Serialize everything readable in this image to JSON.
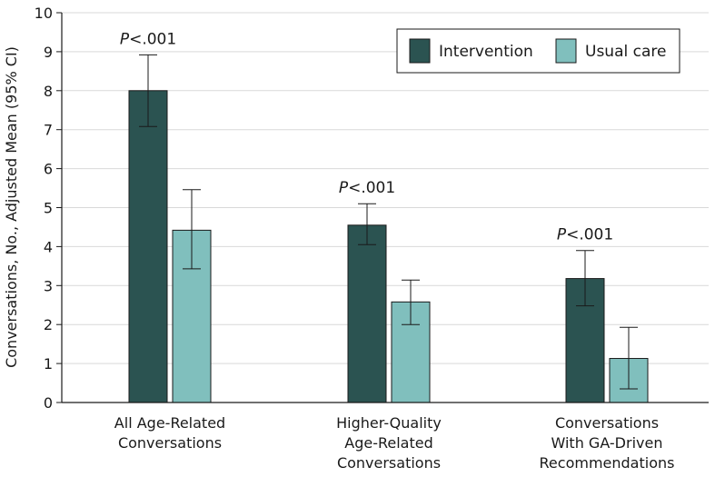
{
  "chart_data": {
    "type": "bar",
    "title": "",
    "xlabel": "",
    "ylabel": "Conversations, No., Adjusted Mean (95% CI)",
    "ylim": [
      0,
      10
    ],
    "yticks": [
      0,
      1,
      2,
      3,
      4,
      5,
      6,
      7,
      8,
      9,
      10
    ],
    "grid": true,
    "legend_position": "top-right",
    "categories": [
      [
        "All Age-Related",
        "Conversations"
      ],
      [
        "Higher-Quality",
        "Age-Related",
        "Conversations"
      ],
      [
        "Conversations",
        "With GA-Driven",
        "Recommendations"
      ]
    ],
    "series": [
      {
        "name": "Intervention",
        "color": "#2b5351",
        "values": [
          8.0,
          4.55,
          3.18
        ],
        "ci_low": [
          7.08,
          4.05,
          2.48
        ],
        "ci_high": [
          8.92,
          5.1,
          3.9
        ]
      },
      {
        "name": "Usual care",
        "color": "#80bfbd",
        "values": [
          4.42,
          2.58,
          1.13
        ],
        "ci_low": [
          3.43,
          2.0,
          0.35
        ],
        "ci_high": [
          5.46,
          3.14,
          1.93
        ]
      }
    ],
    "annotations": [
      {
        "category": 0,
        "p_letter": "P",
        "p_rest": "<.001"
      },
      {
        "category": 1,
        "p_letter": "P",
        "p_rest": "<.001"
      },
      {
        "category": 2,
        "p_letter": "P",
        "p_rest": "<.001"
      }
    ]
  }
}
